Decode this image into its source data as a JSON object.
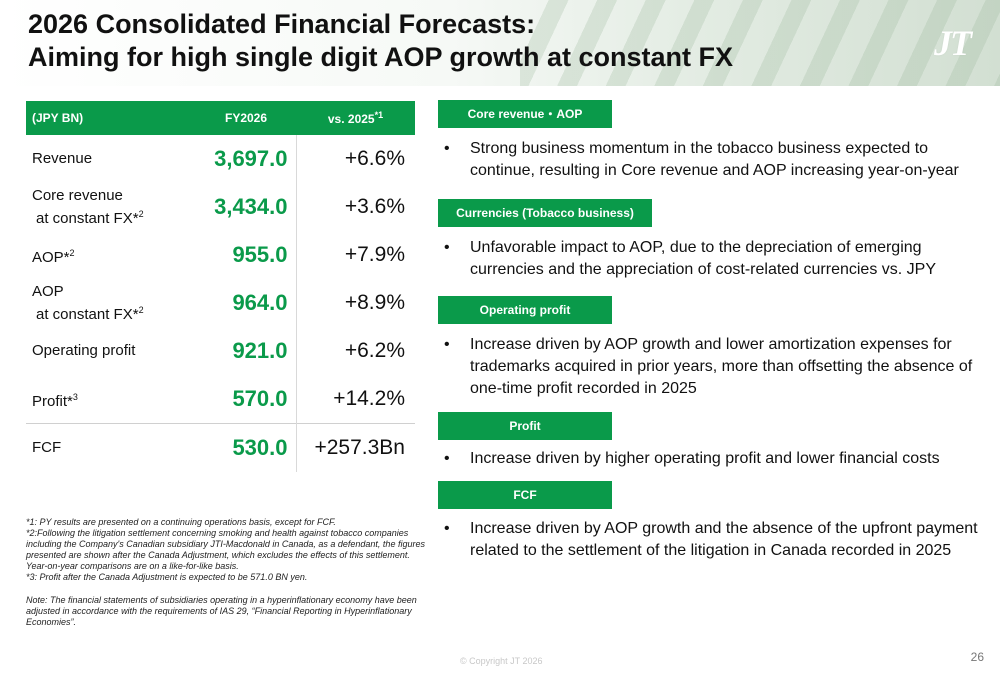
{
  "header": {
    "title_line1": "2026 Consolidated Financial Forecasts:",
    "title_line2": "Aiming for high single digit AOP growth at constant FX",
    "logo_text": "JT"
  },
  "table": {
    "col_label": "(JPY BN)",
    "col_fy": "FY2026",
    "col_vs": "vs. 2025",
    "col_vs_note": "*1",
    "rows": [
      {
        "line1": "Revenue",
        "line2": "",
        "note": "",
        "fy": "3,697.0",
        "vs": "+6.6%"
      },
      {
        "line1": "Core revenue",
        "line2": "at constant FX*",
        "note": "2",
        "fy": "3,434.0",
        "vs": "+3.6%"
      },
      {
        "line1": "AOP*",
        "line2": "",
        "note": "2",
        "fy": "955.0",
        "vs": "+7.9%"
      },
      {
        "line1": "AOP",
        "line2": "at constant FX*",
        "note": "2",
        "fy": "964.0",
        "vs": "+8.9%"
      },
      {
        "line1": "Operating profit",
        "line2": "",
        "note": "",
        "fy": "921.0",
        "vs": "+6.2%"
      },
      {
        "line1": "Profit*",
        "line2": "",
        "note": "3",
        "fy": "570.0",
        "vs": "+14.2%"
      },
      {
        "line1": "FCF",
        "line2": "",
        "note": "",
        "fy": "530.0",
        "vs": "+257.3Bn"
      }
    ]
  },
  "notes": {
    "n1": "*1: PY results are presented on a continuing operations basis, except for FCF.",
    "n2": "*2:Following the litigation settlement concerning smoking and health against tobacco companies including the Company's Canadian subsidiary JTI-Macdonald in Canada, as a defendant, the figures presented are shown after the Canada Adjustment, which excludes the effects of this settlement. Year-on-year comparisons are on a like-for-like basis.",
    "n3": "*3: Profit after the Canada Adjustment is expected to be 571.0 BN yen.",
    "note": "Note: The financial statements of subsidiaries operating in a hyperinflationary economy have been adjusted in accordance with the requirements of IAS 29, “Financial Reporting in Hyperinflationary Economies”."
  },
  "sections": [
    {
      "tag": "Core revenue・AOP",
      "bullet": "Strong business momentum in the tobacco business expected to continue, resulting in Core revenue and AOP increasing year-on-year"
    },
    {
      "tag": "Currencies (Tobacco business)",
      "bullet": "Unfavorable impact to AOP, due to the depreciation of emerging currencies and the appreciation of cost-related currencies vs. JPY"
    },
    {
      "tag": "Operating profit",
      "bullet": "Increase driven by AOP growth and lower amortization expenses for trademarks acquired in prior years, more than offsetting the absence of one-time profit recorded in 2025"
    },
    {
      "tag": "Profit",
      "bullet": "Increase driven by higher operating profit and lower financial costs"
    },
    {
      "tag": "FCF",
      "bullet": "Increase driven by AOP growth and the absence of the upfront payment related to the settlement of the litigation in Canada recorded in 2025"
    }
  ],
  "bullet_char": "•",
  "footer": {
    "copyright": "© Copyright JT 2026",
    "page": "26"
  },
  "colors": {
    "accent": "#0a9a4a"
  }
}
